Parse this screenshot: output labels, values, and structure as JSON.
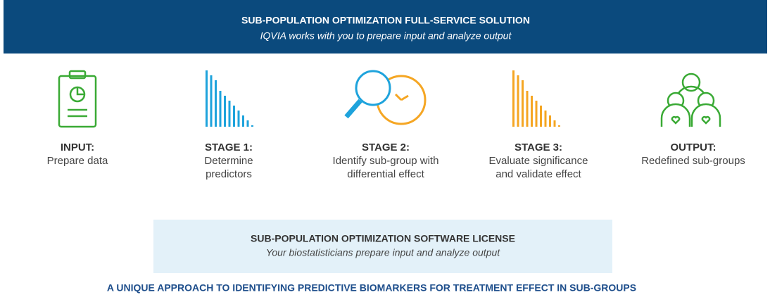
{
  "header": {
    "title": "SUB-POPULATION OPTIMIZATION FULL-SERVICE SOLUTION",
    "subtitle": "IQVIA works with you to prepare input and analyze output"
  },
  "stages": [
    {
      "title": "INPUT:",
      "description": [
        "Prepare data"
      ]
    },
    {
      "title": "STAGE 1:",
      "description": [
        "Determine",
        "predictors"
      ]
    },
    {
      "title": "STAGE 2:",
      "description": [
        "Identify sub-group with",
        "differential effect"
      ]
    },
    {
      "title": "STAGE 3:",
      "description": [
        "Evaluate significance",
        "and validate effect"
      ]
    },
    {
      "title": "OUTPUT:",
      "description": [
        "Redefined sub-groups"
      ]
    }
  ],
  "license": {
    "title": "SUB-POPULATION OPTIMIZATION SOFTWARE LICENSE",
    "subtitle": "Your biostatisticians prepare input and analyze output"
  },
  "footer": "A UNIQUE APPROACH TO IDENTIFYING PREDICTIVE BIOMARKERS FOR TREATMENT EFFECT IN SUB-GROUPS"
}
